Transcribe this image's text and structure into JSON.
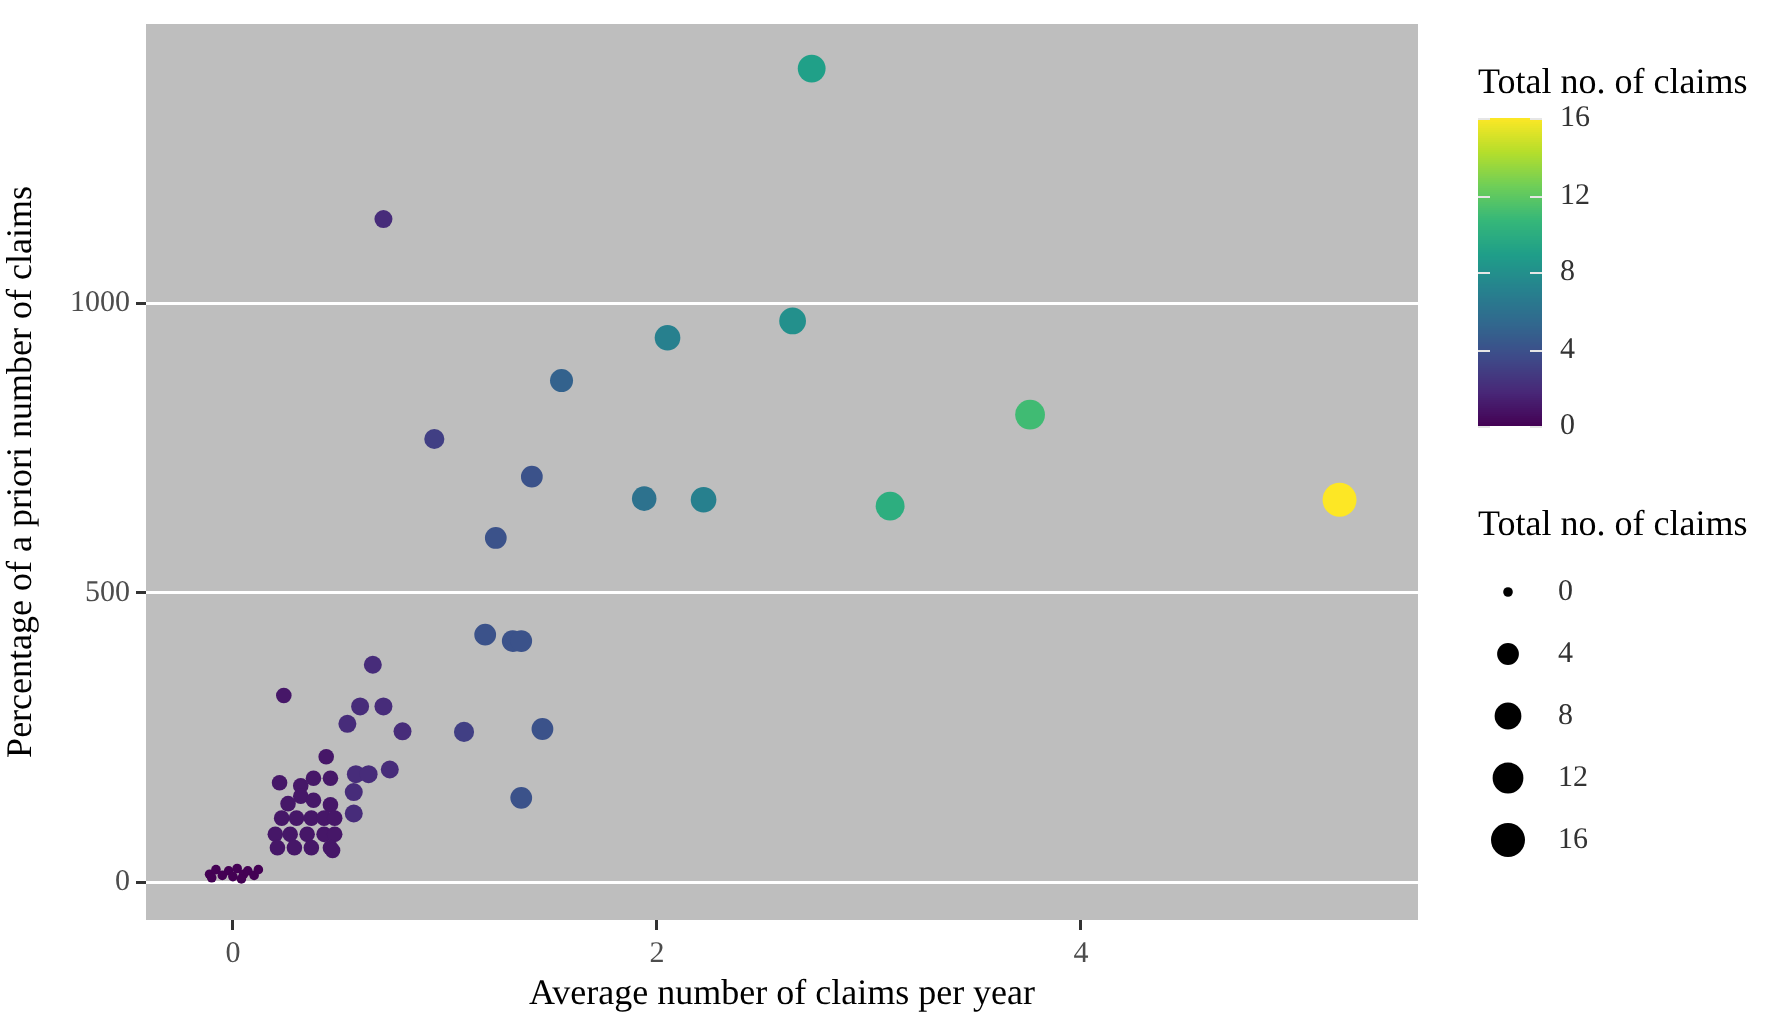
{
  "chart_data": {
    "type": "bubble",
    "xlabel": "Average number of claims per year",
    "ylabel": "Percentage of a priori number of claims",
    "clabel": "Total no. of claims",
    "legend_title": "Total no. of claims",
    "x": [
      2.73,
      2.64,
      2.05,
      1.55,
      0.95,
      1.41,
      1.94,
      2.22,
      3.1,
      1.24,
      0.71,
      3.76,
      5.22,
      1.19,
      1.32,
      1.36,
      0.66,
      0.24,
      0.6,
      0.71,
      0.54,
      0.8,
      1.09,
      1.46,
      0.44,
      0.58,
      0.64,
      0.74,
      0.22,
      0.32,
      0.38,
      0.46,
      0.32,
      0.38,
      0.57,
      0.26,
      0.46,
      0.57,
      1.36,
      0.23,
      0.3,
      0.37,
      0.43,
      0.48,
      0.2,
      0.27,
      0.35,
      0.43,
      0.48,
      0.21,
      0.29,
      0.37,
      0.46,
      0.47,
      -0.11,
      -0.08,
      -0.05,
      -0.02,
      0,
      0.02,
      0.05,
      0.07,
      0.1,
      0.12,
      -0.1,
      0.04
    ],
    "values": [
      1406,
      970,
      941,
      867,
      766,
      701,
      663,
      661,
      650,
      595,
      1146,
      808,
      661,
      428,
      417,
      417,
      376,
      323,
      304,
      304,
      274,
      261,
      260,
      265,
      217,
      187,
      187,
      195,
      172,
      167,
      180,
      180,
      149,
      142,
      156,
      136,
      134,
      119,
      146,
      111,
      111,
      111,
      111,
      111,
      83,
      83,
      83,
      83,
      83,
      60,
      60,
      60,
      60,
      55,
      14,
      22,
      12,
      20,
      10,
      24,
      14,
      20,
      12,
      22,
      8,
      6
    ],
    "cvalues": [
      9,
      8,
      7,
      5,
      3,
      4,
      6,
      7,
      10,
      4,
      2,
      11,
      16,
      4,
      4,
      4,
      2,
      1,
      2,
      2,
      2,
      2,
      3,
      4,
      1,
      2,
      2,
      2,
      1,
      1,
      1,
      1,
      1,
      1,
      2,
      1,
      1,
      2,
      4,
      1,
      1,
      1,
      1,
      1,
      1,
      1,
      1,
      1,
      1,
      1,
      1,
      1,
      1,
      1,
      0,
      0,
      0,
      0,
      0,
      0,
      0,
      0,
      0,
      0,
      0,
      0
    ],
    "sizes": [
      0.67,
      0.62,
      0.57,
      0.46,
      0.35,
      0.41,
      0.52,
      0.57,
      0.72,
      0.41,
      0.28,
      0.77,
      1,
      0.41,
      0.41,
      0.41,
      0.28,
      0.21,
      0.28,
      0.28,
      0.28,
      0.28,
      0.35,
      0.41,
      0.21,
      0.28,
      0.28,
      0.28,
      0.21,
      0.21,
      0.21,
      0.21,
      0.21,
      0.21,
      0.28,
      0.21,
      0.21,
      0.28,
      0.41,
      0.21,
      0.21,
      0.21,
      0.21,
      0.21,
      0.21,
      0.21,
      0.21,
      0.21,
      0.21,
      0.21,
      0.21,
      0.21,
      0.21,
      0.21,
      0.08,
      0.08,
      0.08,
      0.08,
      0.08,
      0.08,
      0.08,
      0.08,
      0.08,
      0.08,
      0.08,
      0.08
    ],
    "size_legend": [
      {
        "value": 0.08,
        "label": "0"
      },
      {
        "value": 0.41,
        "label": "4"
      },
      {
        "value": 0.62,
        "label": "8"
      },
      {
        "value": 0.82,
        "label": "12"
      },
      {
        "value": 1,
        "label": "16"
      }
    ],
    "clim": [
      0,
      16
    ],
    "cticks": [
      0,
      4,
      8,
      12,
      16
    ],
    "xlim": [
      -0.41,
      5.59
    ],
    "xticks": [
      0,
      2,
      4
    ],
    "ylim": [
      -65,
      1483
    ],
    "yticks": [
      0,
      500,
      1000
    ],
    "grid": "y",
    "marker": "circle"
  }
}
